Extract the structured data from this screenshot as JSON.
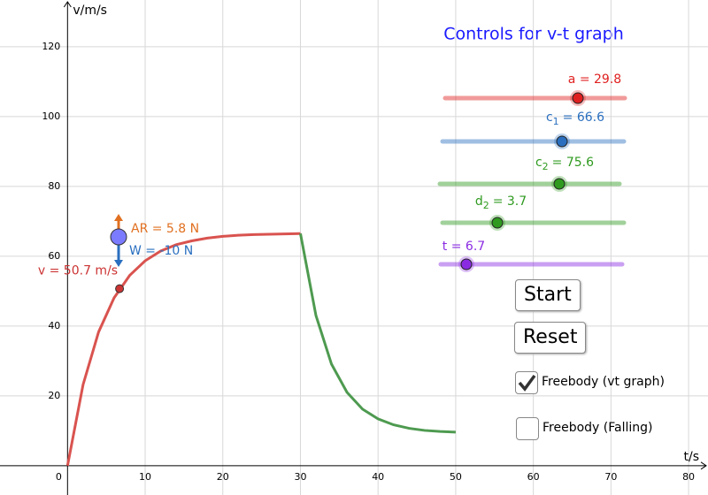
{
  "chart_data": {
    "type": "line",
    "x_label": "t/s",
    "y_label": "v/m/s",
    "xlim": [
      -8.7,
      82.5
    ],
    "ylim": [
      -8.4,
      133.4
    ],
    "xticks": [
      0,
      10,
      20,
      30,
      40,
      50,
      60,
      70,
      80
    ],
    "yticks": [
      20,
      40,
      60,
      80,
      100,
      120
    ],
    "grid": true,
    "series": [
      {
        "color": "#d9534f",
        "x": [
          0,
          2,
          4,
          6,
          8,
          10,
          12,
          14,
          16,
          18,
          20,
          22,
          24,
          26,
          28,
          30
        ],
        "values": [
          0,
          23.2,
          38.3,
          48.1,
          54.5,
          58.7,
          61.5,
          63.3,
          64.4,
          65.2,
          65.7,
          66.0,
          66.2,
          66.3,
          66.4,
          66.5
        ]
      },
      {
        "color": "#4e9a50",
        "x": [
          30,
          32,
          34,
          36,
          38,
          40,
          42,
          44,
          46,
          48,
          50
        ],
        "values": [
          66.5,
          43.0,
          29.1,
          21.0,
          16.2,
          13.4,
          11.7,
          10.7,
          10.1,
          9.8,
          9.6
        ]
      }
    ],
    "marker": {
      "x": 6.7,
      "y": 50.7,
      "label": "v = 50.7 m/s",
      "color": "#cc3333"
    },
    "forces": {
      "up": "AR = 5.8 N",
      "down": "W = -10 N"
    }
  },
  "controls": {
    "title": "Controls for v-t graph",
    "sliders": [
      {
        "label": "a = 29.8",
        "color": "#e02020"
      },
      {
        "label": "c",
        "sub": "1",
        "value_text": "= 66.6",
        "color": "#2a6fbf"
      },
      {
        "label": "c",
        "sub": "2",
        "value_text": "= 75.6",
        "color": "#2f9a1f"
      },
      {
        "label": "d",
        "sub": "2",
        "value_text": "= 3.7",
        "color": "#2f9a1f"
      },
      {
        "label": "t = 6.7",
        "color": "#8a2be2"
      }
    ],
    "buttons": [
      "Start",
      "Reset"
    ],
    "checkboxes": [
      {
        "label": "Freebody (vt graph)",
        "checked": true
      },
      {
        "label": "Freebody (Falling)",
        "checked": false
      }
    ]
  }
}
